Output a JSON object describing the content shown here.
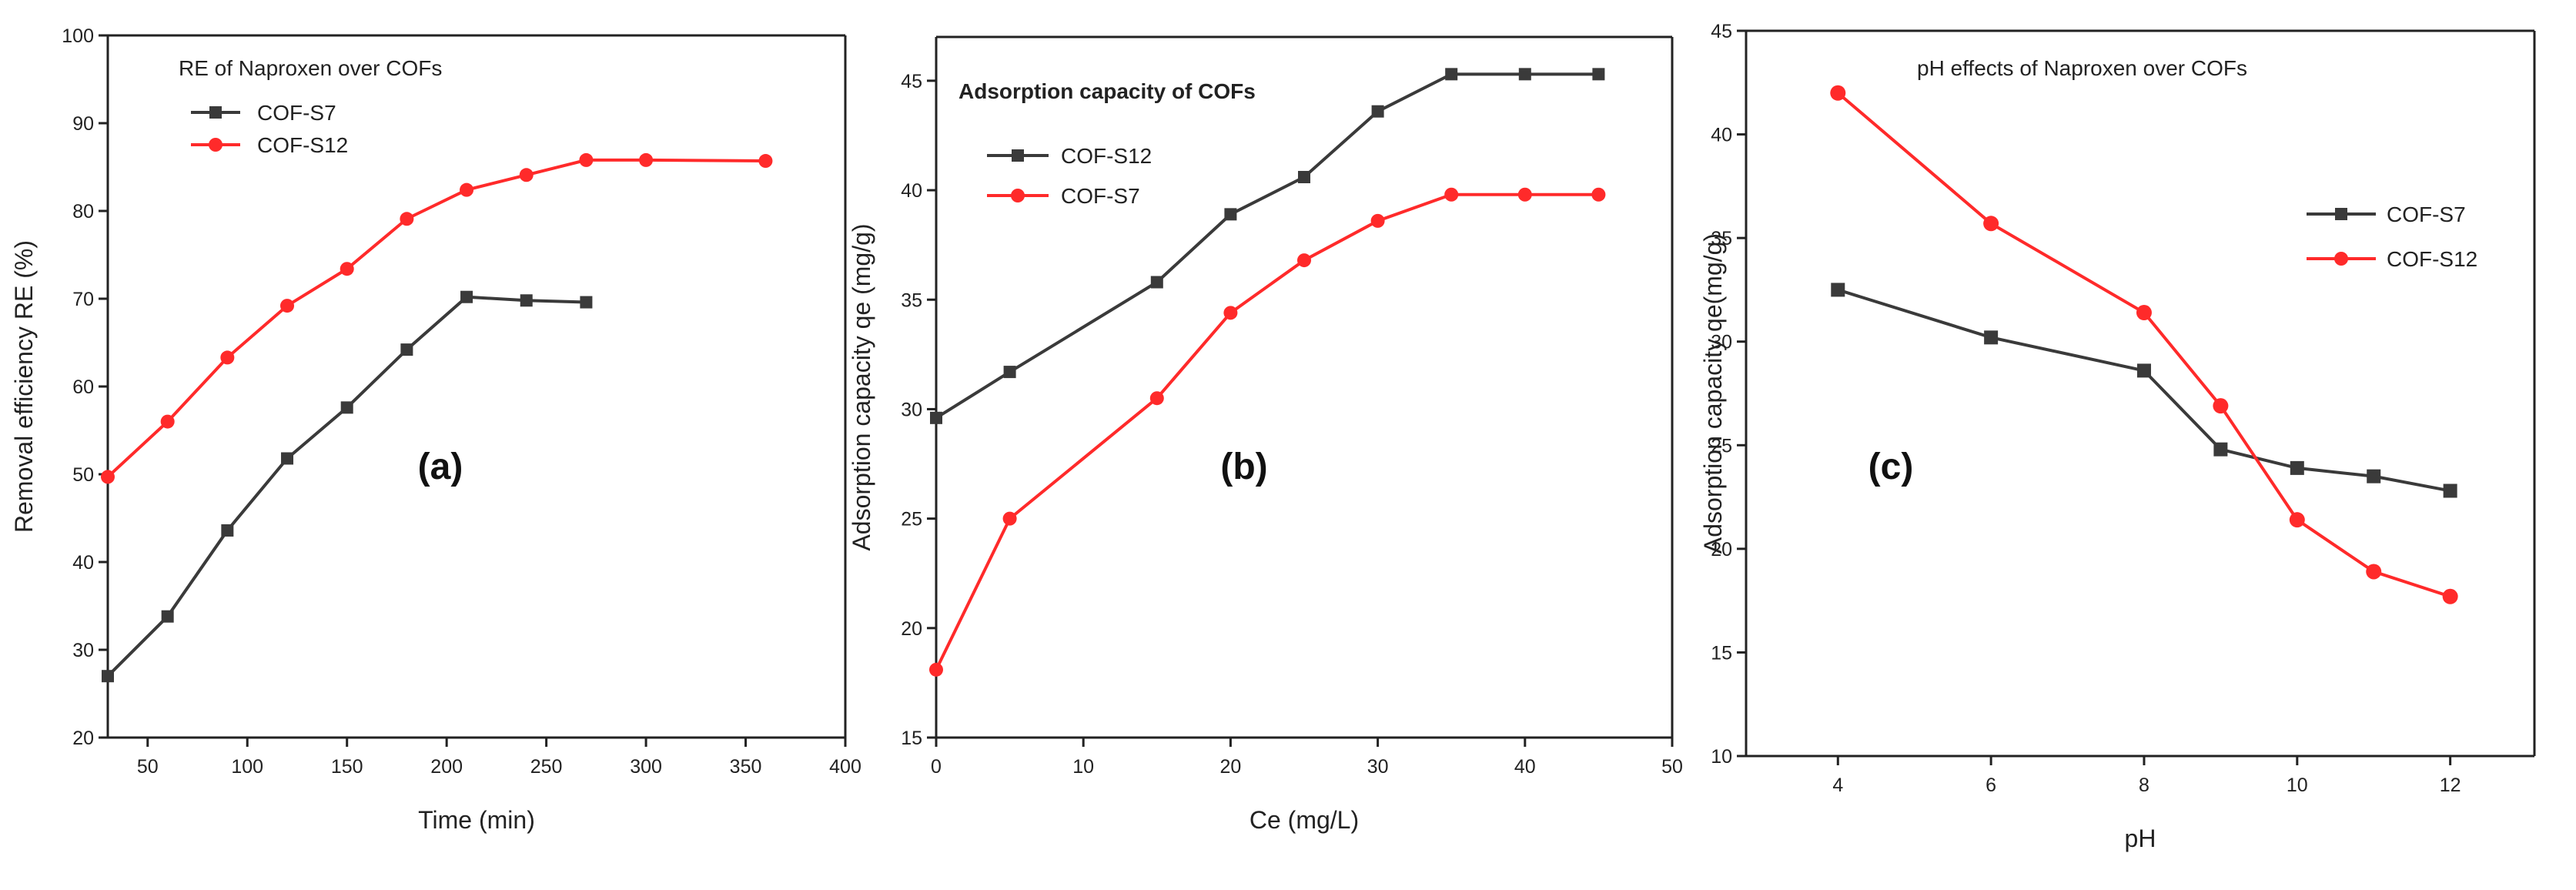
{
  "colors": {
    "black_series": "#3a3a3a",
    "red_series": "#ff2a2a",
    "axis": "#222222"
  },
  "chart_data": [
    {
      "type": "line",
      "panel_label": "(a)",
      "title": "RE of Naproxen over COFs",
      "xlabel": "Time (min)",
      "ylabel": "Removal efficiency RE (%)",
      "xlim": [
        30,
        400
      ],
      "ylim": [
        20,
        100
      ],
      "xticks": [
        "50",
        "100",
        "150",
        "200",
        "250",
        "300",
        "350",
        "400"
      ],
      "yticks": [
        "20",
        "30",
        "40",
        "50",
        "60",
        "70",
        "80",
        "90",
        "100"
      ],
      "legend": [
        "COF-S7",
        "COF-S12"
      ],
      "series": [
        {
          "name": "COF-S7",
          "marker": "square",
          "color": "#3a3a3a",
          "x": [
            30,
            60,
            90,
            120,
            150,
            180,
            210,
            240,
            270
          ],
          "y": [
            27,
            33.8,
            43.6,
            51.8,
            57.6,
            64.2,
            70.2,
            69.8,
            69.6
          ]
        },
        {
          "name": "COF-S12",
          "marker": "circle",
          "color": "#ff2a2a",
          "x": [
            30,
            60,
            90,
            120,
            150,
            180,
            210,
            240,
            270,
            300,
            360
          ],
          "y": [
            49.7,
            56,
            63.3,
            69.2,
            73.4,
            79.1,
            82.4,
            84.1,
            85.8,
            85.8,
            85.7
          ]
        }
      ]
    },
    {
      "type": "line",
      "panel_label": "(b)",
      "title": "Adsorption capacity of COFs",
      "xlabel": "Ce (mg/L)",
      "ylabel": "Adsorption capacity qe (mg/g)",
      "xlim": [
        0,
        50
      ],
      "ylim": [
        15,
        47
      ],
      "xticks": [
        "0",
        "10",
        "20",
        "30",
        "40",
        "50"
      ],
      "yticks": [
        "15",
        "20",
        "25",
        "30",
        "35",
        "40",
        "45"
      ],
      "legend": [
        "COF-S12",
        "COF-S7"
      ],
      "series": [
        {
          "name": "COF-S12",
          "marker": "square",
          "color": "#3a3a3a",
          "x": [
            0,
            5,
            15,
            20,
            25,
            30,
            35,
            40,
            45
          ],
          "y": [
            29.6,
            31.7,
            35.8,
            38.9,
            40.6,
            43.6,
            45.3,
            45.3,
            45.3
          ]
        },
        {
          "name": "COF-S7",
          "marker": "circle",
          "color": "#ff2a2a",
          "x": [
            0,
            5,
            15,
            20,
            25,
            30,
            35,
            40,
            45
          ],
          "y": [
            18.1,
            25,
            30.5,
            34.4,
            36.8,
            38.6,
            39.8,
            39.8,
            39.8
          ]
        }
      ]
    },
    {
      "type": "line",
      "panel_label": "(c)",
      "title": "pH effects of Naproxen over COFs",
      "xlabel": "pH",
      "ylabel": "Adsorption capacity qe(mg/g)",
      "xlim": [
        2.8,
        13.1
      ],
      "ylim": [
        10,
        45
      ],
      "xticks": [
        "4",
        "6",
        "8",
        "10",
        "12"
      ],
      "yticks": [
        "10",
        "15",
        "20",
        "25",
        "30",
        "35",
        "40",
        "45"
      ],
      "legend": [
        "COF-S7",
        "COF-S12"
      ],
      "series": [
        {
          "name": "COF-S7",
          "marker": "square",
          "color": "#3a3a3a",
          "x": [
            4,
            6,
            8,
            9,
            10,
            11,
            12
          ],
          "y": [
            32.5,
            30.2,
            28.6,
            24.8,
            23.9,
            23.5,
            22.8
          ]
        },
        {
          "name": "COF-S12",
          "marker": "circle",
          "color": "#ff2a2a",
          "x": [
            4,
            6,
            8,
            9,
            10,
            11,
            12
          ],
          "y": [
            42,
            35.7,
            31.4,
            26.9,
            21.4,
            18.9,
            17.7
          ]
        }
      ]
    }
  ]
}
